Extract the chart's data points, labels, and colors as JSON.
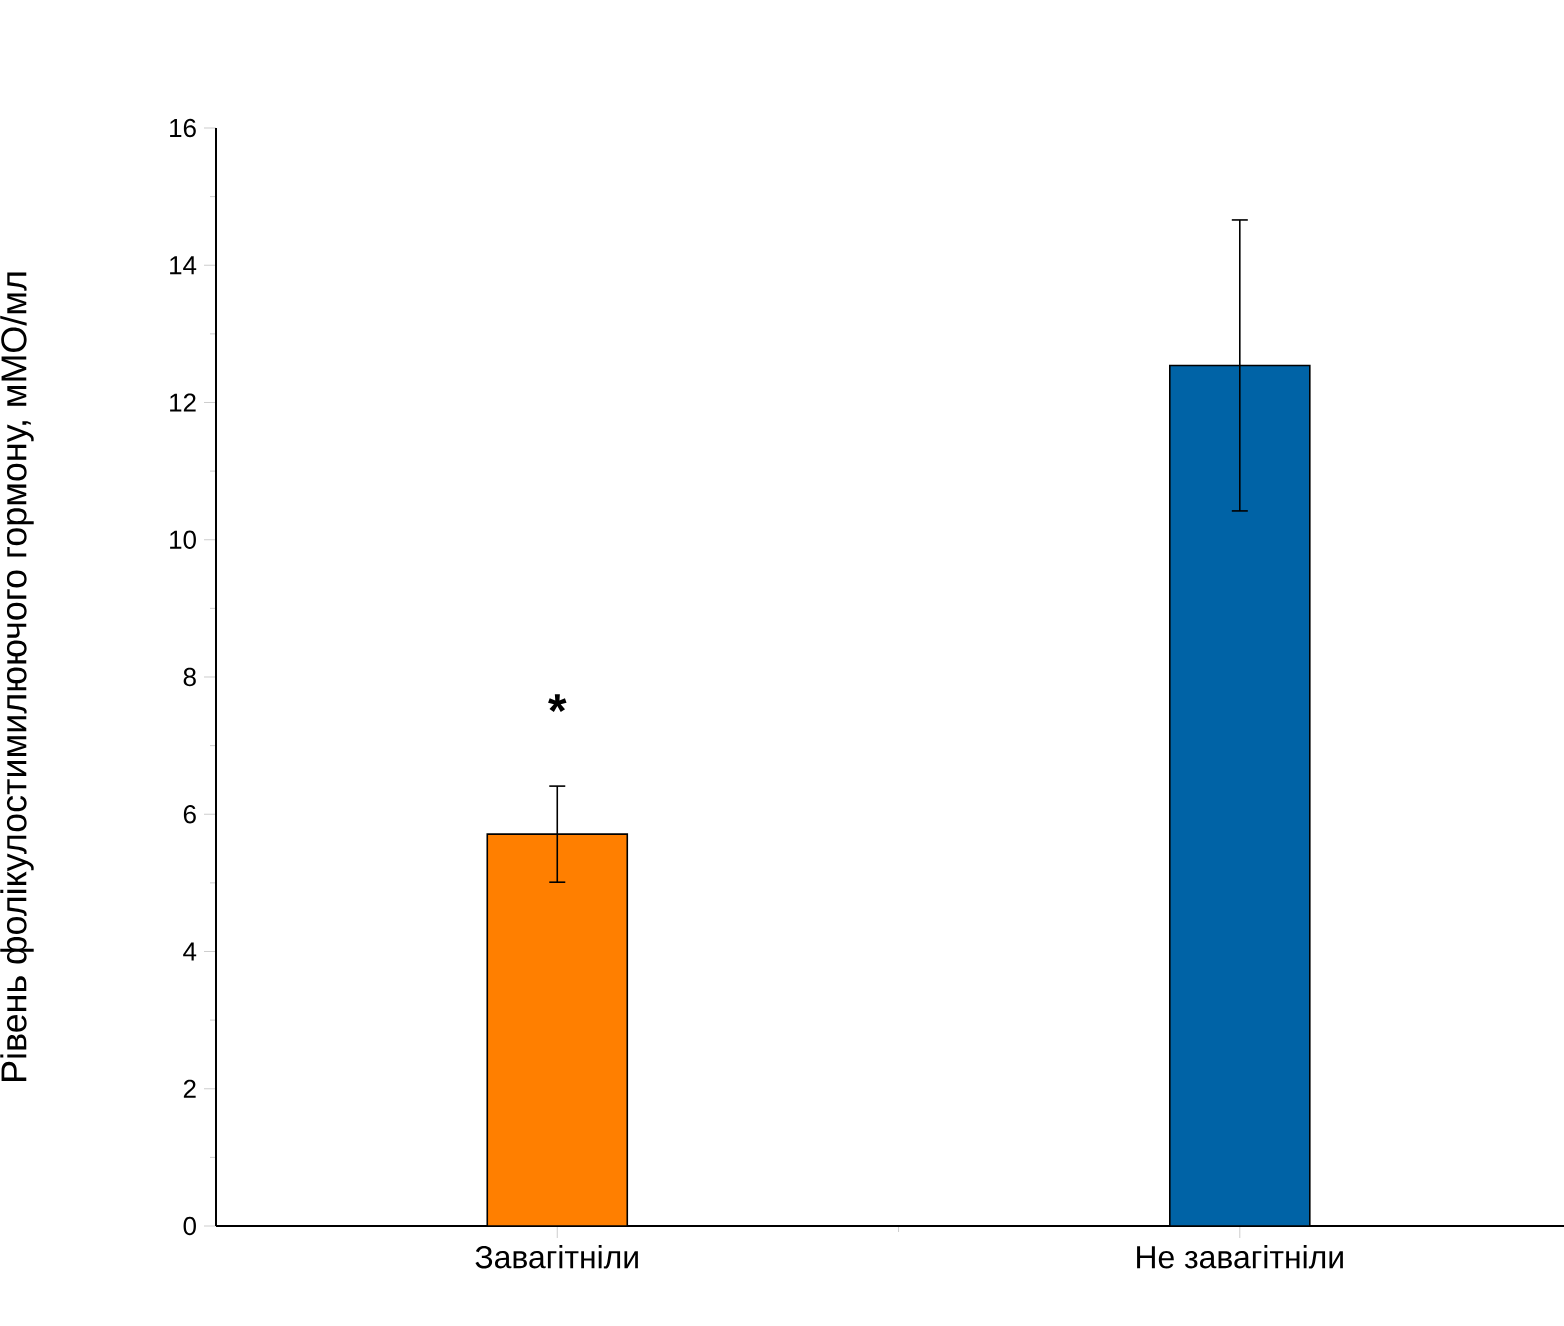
{
  "chart_data": {
    "type": "bar",
    "ylabel": "Рівень фолікулостимилюючого гормону, мМО/мл",
    "categories": [
      "Завагітніли",
      "Не завагітніли"
    ],
    "values": [
      5.71,
      12.54
    ],
    "errors": [
      0.7,
      2.12
    ],
    "colors": [
      "#ff7f00",
      "#0063a6"
    ],
    "ylim": [
      0,
      16
    ],
    "yticks": [
      0,
      2,
      4,
      6,
      8,
      10,
      12,
      14,
      16
    ],
    "annotations": [
      "*"
    ]
  }
}
